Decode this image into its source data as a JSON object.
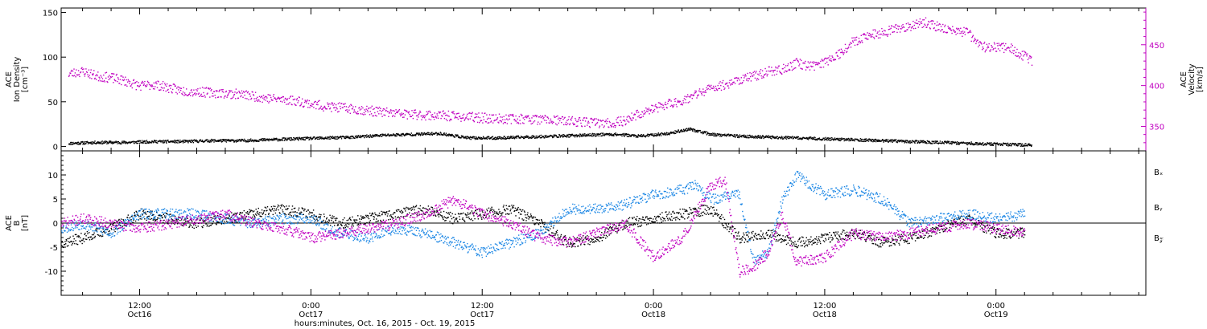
{
  "colors": {
    "black": "#000000",
    "magenta": "#c000c0",
    "blue": "#1e88e5"
  },
  "x_axis": {
    "title": "hours:minutes, Oct. 16, 2015 - Oct. 19, 2015",
    "range_hours": [
      6.5,
      82.5
    ],
    "ticks": [
      {
        "hours": 12,
        "time": "12:00",
        "date": "Oct16"
      },
      {
        "hours": 24,
        "time": "0:00",
        "date": "Oct17"
      },
      {
        "hours": 36,
        "time": "12:00",
        "date": "Oct17"
      },
      {
        "hours": 48,
        "time": "0:00",
        "date": "Oct18"
      },
      {
        "hours": 60,
        "time": "12:00",
        "date": "Oct18"
      },
      {
        "hours": 72,
        "time": "0:00",
        "date": "Oct19"
      }
    ],
    "minor_step_hours": 2
  },
  "chart_data": [
    {
      "type": "scatter",
      "panel": "top",
      "ylabel_lines": [
        "ACE",
        "Ion Density",
        "[cm⁻³]"
      ],
      "ylim": [
        -5,
        155
      ],
      "yticks": [
        0,
        50,
        100,
        150
      ],
      "y2label_lines": [
        "ACE",
        "Velocity",
        "[km/s]"
      ],
      "y2lim": [
        320,
        495
      ],
      "y2ticks": [
        350,
        400,
        450
      ],
      "series": [
        {
          "color": "black",
          "axis": "left",
          "x": [
            7,
            9,
            11,
            13,
            15,
            17,
            19,
            21,
            23,
            25,
            27,
            29,
            31,
            33,
            35,
            37,
            39,
            41,
            43,
            44.5,
            45.5,
            47,
            49,
            50.5,
            52,
            54,
            56,
            58,
            60,
            62,
            64,
            66,
            68,
            70,
            72,
            74.5
          ],
          "y": [
            4,
            5,
            5,
            6,
            6,
            7,
            7,
            8,
            9,
            10,
            11,
            13,
            14,
            15,
            10,
            10,
            11,
            12,
            13,
            14,
            14,
            12,
            15,
            20,
            14,
            12,
            11,
            10,
            9,
            8,
            7,
            6,
            5,
            4,
            3,
            2
          ]
        },
        {
          "color": "magenta",
          "axis": "right",
          "x": [
            7,
            8,
            9,
            10,
            11,
            12,
            13,
            14,
            15,
            17,
            19,
            21,
            23,
            24,
            25,
            27,
            29,
            31,
            33,
            35,
            37,
            39,
            41,
            43,
            45,
            46,
            47,
            48,
            49,
            50,
            51,
            52,
            53,
            54,
            55,
            56,
            57,
            58,
            59,
            60,
            61,
            62,
            63,
            64,
            65,
            66,
            67,
            68,
            69,
            70,
            71,
            72,
            73,
            74,
            74.5
          ],
          "y": [
            415,
            418,
            412,
            410,
            406,
            400,
            402,
            398,
            394,
            392,
            390,
            385,
            382,
            378,
            375,
            372,
            368,
            365,
            364,
            362,
            360,
            360,
            358,
            356,
            354,
            358,
            366,
            372,
            378,
            382,
            390,
            397,
            402,
            408,
            412,
            418,
            420,
            428,
            424,
            430,
            440,
            455,
            462,
            465,
            470,
            474,
            478,
            472,
            468,
            465,
            448,
            448,
            446,
            436,
            430
          ]
        }
      ]
    },
    {
      "type": "scatter",
      "panel": "bottom",
      "ylabel_lines": [
        "ACE",
        "B",
        "[nT]"
      ],
      "ylim": [
        -15,
        15
      ],
      "yticks": [
        -10,
        -5,
        0,
        5,
        10
      ],
      "zero_line": true,
      "series": [
        {
          "name": "Bₓ",
          "color": "black",
          "x": [
            6.5,
            8,
            10,
            12,
            14,
            16,
            18,
            20,
            22,
            24,
            26,
            28,
            30,
            32,
            34,
            36,
            38,
            40,
            42,
            44,
            46,
            48,
            50,
            52,
            54,
            56,
            58,
            60,
            62,
            64,
            66,
            68,
            70,
            72,
            74
          ],
          "y": [
            -4,
            -3,
            -1,
            2,
            1,
            0,
            1,
            2,
            3,
            2,
            0,
            1,
            2,
            3,
            1,
            2,
            3,
            0,
            -4,
            -3,
            0,
            1,
            2,
            3,
            -3,
            -2,
            -4,
            -3,
            -2,
            -4,
            -3,
            -1,
            1,
            -2,
            -2
          ]
        },
        {
          "name": "Bᵧ",
          "color": "blue",
          "x": [
            6.5,
            8,
            10,
            12,
            14,
            16,
            18,
            20,
            22,
            24,
            26,
            28,
            30,
            32,
            34,
            36,
            38,
            40,
            42,
            44,
            46,
            48,
            50,
            51,
            52,
            54,
            55,
            56,
            57,
            58,
            60,
            62,
            64,
            66,
            68,
            70,
            72,
            74
          ],
          "y": [
            -1,
            0,
            -2,
            2,
            2,
            2,
            1,
            0,
            1,
            1,
            -2,
            -3,
            -1,
            -2,
            -4,
            -6,
            -4,
            -2,
            3,
            3,
            4,
            6,
            7,
            8,
            5,
            6,
            -8,
            -6,
            5,
            10,
            6,
            7,
            5,
            0,
            1,
            2,
            1,
            2
          ]
        },
        {
          "name": "B𝓏",
          "color": "magenta",
          "x": [
            6.5,
            8,
            10,
            12,
            14,
            16,
            18,
            20,
            22,
            24,
            26,
            28,
            30,
            32,
            34,
            36,
            38,
            40,
            42,
            44,
            46,
            48,
            50,
            52,
            53,
            54,
            55,
            56,
            57,
            58,
            60,
            62,
            64,
            66,
            68,
            70,
            72,
            74
          ],
          "y": [
            0,
            1,
            0,
            -1,
            0,
            1,
            2,
            0,
            -1,
            -3,
            -2,
            -1,
            0,
            2,
            5,
            2,
            0,
            -3,
            -4,
            -2,
            0,
            -7,
            -3,
            8,
            9,
            -10,
            -9,
            -6,
            2,
            -8,
            -7,
            -2,
            -3,
            -2,
            -1,
            0,
            -1,
            -2
          ]
        }
      ]
    }
  ]
}
